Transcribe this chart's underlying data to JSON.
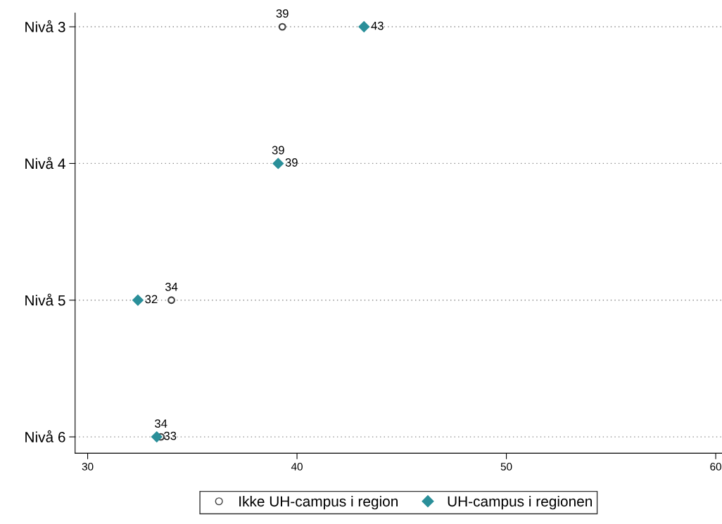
{
  "chart_data": {
    "type": "scatter",
    "orientation": "horizontal",
    "categories": [
      "Nivå 3",
      "Nivå 4",
      "Nivå 5",
      "Nivå 6"
    ],
    "series": [
      {
        "name": "Ikke UH-campus i region",
        "color": "#404040",
        "marker": "circle",
        "values": [
          39.3,
          39.1,
          34.0,
          33.5
        ],
        "value_labels": [
          "39",
          "39",
          "34",
          "34"
        ]
      },
      {
        "name": "UH-campus i regionen",
        "color": "#2a8f99",
        "marker": "diamond",
        "values": [
          43.2,
          39.1,
          32.4,
          33.3
        ],
        "value_labels": [
          "43",
          "39",
          "32",
          "33"
        ]
      }
    ],
    "xlim": [
      29.4,
      60.3
    ],
    "xticks": [
      30,
      40,
      50,
      60
    ],
    "grid": "y",
    "legend": "bottom"
  }
}
